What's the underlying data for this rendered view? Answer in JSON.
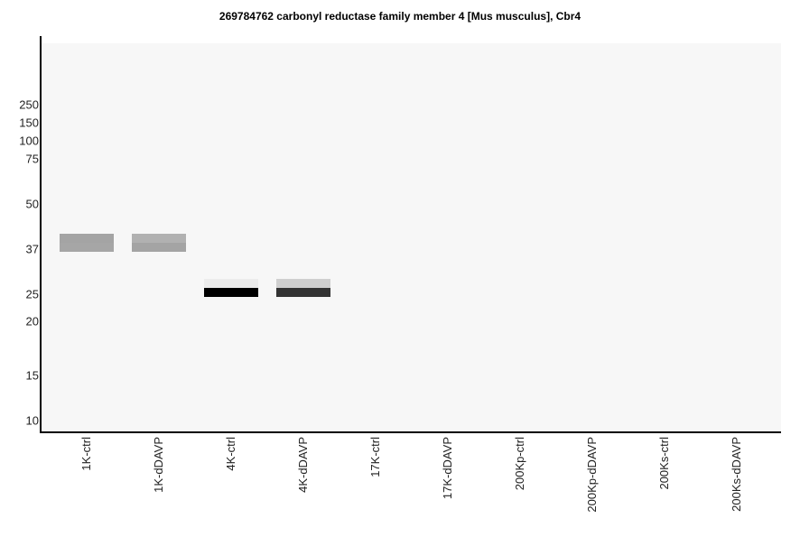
{
  "chart_data": {
    "type": "western-blot",
    "title": "269784762 carbonyl reductase family member 4 [Mus musculus], Cbr4",
    "y_ticks": [
      {
        "label": "250",
        "mw": 250
      },
      {
        "label": "150",
        "mw": 150
      },
      {
        "label": "100",
        "mw": 100
      },
      {
        "label": "75",
        "mw": 75
      },
      {
        "label": "50",
        "mw": 50
      },
      {
        "label": "37",
        "mw": 37
      },
      {
        "label": "25",
        "mw": 25
      },
      {
        "label": "20",
        "mw": 20
      },
      {
        "label": "15",
        "mw": 15
      },
      {
        "label": "10",
        "mw": 10
      }
    ],
    "lanes": [
      "1K-ctrl",
      "1K-dDAVP",
      "4K-ctrl",
      "4K-dDAVP",
      "17K-ctrl",
      "17K-dDAVP",
      "200Kp-ctrl",
      "200Kp-dDAVP",
      "200Ks-ctrl",
      "200Ks-dDAVP"
    ],
    "bands": [
      {
        "lane": 0,
        "mw": 37,
        "top_color": "#a4a4a4",
        "bottom_color": "#a6a6a6"
      },
      {
        "lane": 1,
        "mw": 37,
        "top_color": "#b1b1b1",
        "bottom_color": "#a4a4a4"
      },
      {
        "lane": 2,
        "mw": 25,
        "top_color": "#ececec",
        "bottom_color": "#000000"
      },
      {
        "lane": 3,
        "mw": 25,
        "top_color": "#cfcfcf",
        "bottom_color": "#333333"
      }
    ]
  }
}
